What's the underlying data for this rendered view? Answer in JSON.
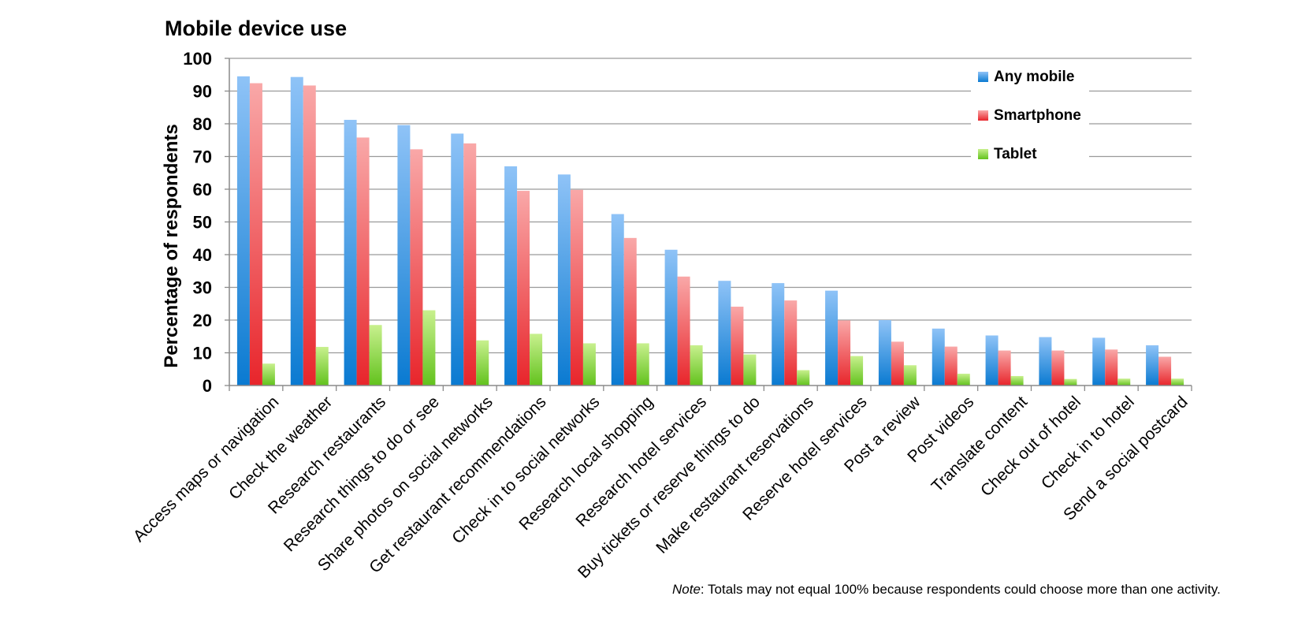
{
  "chart_data": {
    "type": "bar",
    "title": "Mobile device use",
    "ylabel": "Percentage of respondents",
    "xlabel": "",
    "ylim": [
      0,
      100
    ],
    "yticks": [
      0,
      10,
      20,
      30,
      40,
      50,
      60,
      70,
      80,
      90,
      100
    ],
    "grid": true,
    "legend_position": "top-right",
    "categories": [
      "Access maps or navigation",
      "Check the weather",
      "Research restaurants",
      "Research things to do or see",
      "Share photos on social networks",
      "Get restaurant recommendations",
      "Check in to social networks",
      "Research local shopping",
      "Research hotel services",
      "Buy tickets or reserve things to do",
      "Make restaurant reservations",
      "Reserve hotel services",
      "Post a review",
      "Post videos",
      "Translate content",
      "Check out of hotel",
      "Check in to hotel",
      "Send a social postcard"
    ],
    "series": [
      {
        "name": "Any mobile",
        "color_top": "#8fc3f7",
        "color_bottom": "#0a7ad1",
        "values": [
          94.5,
          94.3,
          81.2,
          79.6,
          77,
          67,
          64.5,
          52.4,
          41.5,
          32,
          31.3,
          29,
          20,
          17.4,
          15.3,
          14.8,
          14.6,
          12.3
        ]
      },
      {
        "name": "Smartphone",
        "color_top": "#f9a8a8",
        "color_bottom": "#e8252b",
        "values": [
          92.4,
          91.7,
          75.8,
          72.2,
          74,
          59.5,
          59.8,
          45.1,
          33.3,
          24.1,
          26,
          19.9,
          13.4,
          11.9,
          10.7,
          10.7,
          11,
          8.8
        ]
      },
      {
        "name": "Tablet",
        "color_top": "#c8f08e",
        "color_bottom": "#62c21d",
        "values": [
          6.7,
          11.8,
          18.5,
          23,
          13.8,
          15.8,
          12.9,
          12.9,
          12.3,
          9.5,
          4.7,
          9,
          6.2,
          3.6,
          2.9,
          2,
          2.1,
          2.1
        ]
      }
    ],
    "note_prefix": "Note",
    "note_text": ": Totals may not equal 100% because respondents could choose more than one activity."
  }
}
